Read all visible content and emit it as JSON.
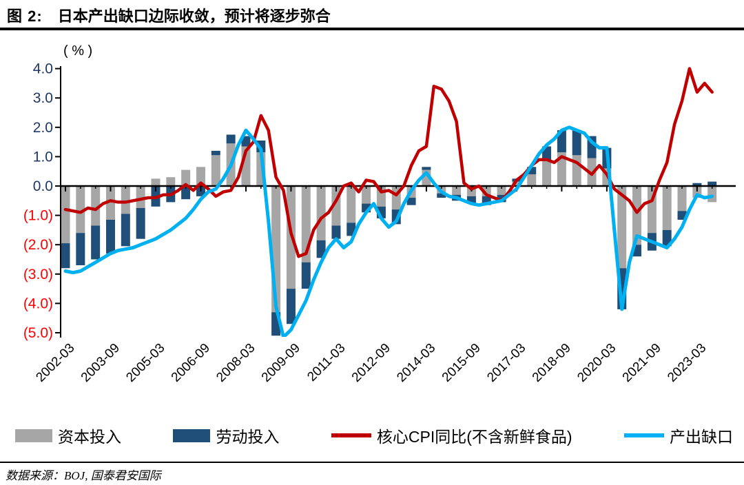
{
  "title": {
    "prefix": "图 2:",
    "text": "日本产出缺口边际收敛，预计将逐步弥合"
  },
  "source": {
    "label": "数据来源：BOJ, 国泰君安国际"
  },
  "axis": {
    "unit_label": "( % )",
    "y_ticks": [
      {
        "value": 4,
        "label": "4.0"
      },
      {
        "value": 3,
        "label": "3.0"
      },
      {
        "value": 2,
        "label": "2.0"
      },
      {
        "value": 1,
        "label": "1.0"
      },
      {
        "value": 0,
        "label": "0.0"
      },
      {
        "value": -1,
        "label": "(1.0)"
      },
      {
        "value": -2,
        "label": "(2.0)"
      },
      {
        "value": -3,
        "label": "(3.0)"
      },
      {
        "value": -4,
        "label": "(4.0)"
      },
      {
        "value": -5,
        "label": "(5.0)"
      }
    ],
    "x_tick_labels": [
      "2002-03",
      "2003-09",
      "2005-03",
      "2006-09",
      "2008-03",
      "2009-09",
      "2011-03",
      "2012-09",
      "2014-03",
      "2015-09",
      "2017-03",
      "2018-09",
      "2020-03",
      "2021-09",
      "2023-03"
    ]
  },
  "colors": {
    "capital": "#A6A6A6",
    "labor": "#1F4E79",
    "cpi": "#C00000",
    "gap": "#00B0F0",
    "axis": "#000000",
    "y_label_positive": "#1F3864",
    "y_label_negative": "#FF0000"
  },
  "legend": [
    {
      "label": "资本投入",
      "kind": "bar",
      "color": "#A6A6A6"
    },
    {
      "label": "劳动投入",
      "kind": "bar",
      "color": "#1F4E79"
    },
    {
      "label": "核心CPI同比(不含新鲜食品)",
      "kind": "line",
      "color": "#C00000"
    },
    {
      "label": "产出缺口",
      "kind": "line",
      "color": "#00B0F0"
    }
  ],
  "chart_data": {
    "type": "combo-bar-line",
    "title": "日本产出缺口边际收敛，预计将逐步弥合",
    "ylabel": "( % )",
    "ylim": [
      -5,
      4
    ],
    "grid": false,
    "legend_position": "bottom",
    "bar_dates": [
      "2002-03",
      "2002-09",
      "2003-03",
      "2003-09",
      "2004-03",
      "2004-09",
      "2005-03",
      "2005-09",
      "2006-03",
      "2006-09",
      "2007-03",
      "2007-09",
      "2008-03",
      "2008-09",
      "2009-03",
      "2009-09",
      "2010-03",
      "2010-09",
      "2011-03",
      "2011-09",
      "2012-03",
      "2012-09",
      "2013-03",
      "2013-09",
      "2014-03",
      "2014-09",
      "2015-03",
      "2015-09",
      "2016-03",
      "2016-09",
      "2017-03",
      "2017-09",
      "2018-03",
      "2018-09",
      "2019-03",
      "2019-09",
      "2020-03",
      "2020-09",
      "2021-03",
      "2021-09",
      "2022-03",
      "2022-09",
      "2023-03",
      "2023-09"
    ],
    "series": [
      {
        "name": "资本投入",
        "type": "bar",
        "stacked": true,
        "color": "#A6A6A6",
        "values": [
          -1.95,
          -1.6,
          -1.35,
          -1.15,
          -0.95,
          -0.75,
          0.25,
          0.3,
          0.55,
          0.65,
          1.05,
          1.45,
          1.35,
          1.15,
          -4.3,
          -3.5,
          -2.6,
          -1.85,
          -1.35,
          -1.25,
          -0.6,
          -0.7,
          -0.8,
          -0.4,
          0.55,
          -0.25,
          -0.3,
          -0.35,
          -0.35,
          -0.3,
          0.15,
          0.4,
          0.85,
          1.15,
          1.05,
          0.95,
          0.6,
          -2.8,
          -2.0,
          -1.6,
          -1.5,
          -0.85,
          -0.4,
          -0.55
        ]
      },
      {
        "name": "劳动投入",
        "type": "bar",
        "stacked": true,
        "color": "#1F4E79",
        "values": [
          -0.85,
          -1.1,
          -1.15,
          -1.15,
          -1.1,
          -1.05,
          -0.7,
          -0.55,
          -0.45,
          -0.35,
          0.15,
          0.3,
          0.35,
          0.4,
          -0.8,
          -1.2,
          -0.9,
          -0.6,
          -0.45,
          -0.45,
          -0.3,
          -0.4,
          -0.5,
          -0.25,
          0.1,
          -0.15,
          -0.2,
          -0.25,
          -0.3,
          -0.25,
          0.1,
          0.25,
          0.5,
          0.75,
          0.85,
          0.75,
          0.7,
          -1.4,
          -0.4,
          -0.6,
          -0.55,
          -0.3,
          0.1,
          0.15
        ]
      },
      {
        "name": "核心CPI同比(不含新鲜食品)",
        "type": "line",
        "color": "#C00000",
        "x_start": 2002.25,
        "x_step": 0.25,
        "values": [
          -0.8,
          -0.85,
          -0.9,
          -0.75,
          -0.8,
          -0.6,
          -0.5,
          -0.55,
          -0.55,
          -0.5,
          -0.45,
          -0.4,
          -0.4,
          -0.3,
          -0.3,
          -0.15,
          0.05,
          -0.15,
          0.1,
          -0.1,
          -0.35,
          -0.2,
          -0.15,
          0.3,
          1.2,
          1.5,
          2.4,
          1.9,
          0.3,
          -0.15,
          -1.6,
          -2.4,
          -2.3,
          -1.5,
          -1.1,
          -0.9,
          -0.5,
          0.0,
          0.1,
          -0.2,
          0.2,
          0.15,
          -0.2,
          -0.15,
          -0.3,
          0.0,
          0.7,
          1.2,
          1.35,
          3.4,
          3.3,
          2.9,
          2.2,
          0.1,
          -0.1,
          0.0,
          -0.3,
          -0.4,
          -0.5,
          -0.2,
          0.2,
          0.4,
          0.7,
          0.9,
          0.9,
          0.8,
          1.0,
          0.9,
          0.8,
          0.6,
          0.4,
          0.7,
          0.4,
          -0.1,
          -0.3,
          -0.5,
          -0.9,
          -0.6,
          -0.5,
          0.2,
          0.8,
          2.1,
          2.9,
          4.0,
          3.2,
          3.5,
          3.2
        ]
      },
      {
        "name": "产出缺口",
        "type": "line",
        "color": "#00B0F0",
        "x_start": 2002.25,
        "x_step": 0.25,
        "values": [
          -2.9,
          -2.95,
          -2.9,
          -2.75,
          -2.6,
          -2.45,
          -2.3,
          -2.2,
          -2.15,
          -2.1,
          -2.0,
          -1.9,
          -1.8,
          -1.65,
          -1.5,
          -1.3,
          -1.1,
          -0.8,
          -0.45,
          -0.2,
          -0.1,
          0.25,
          0.7,
          1.4,
          1.9,
          1.6,
          1.25,
          -1.2,
          -4.1,
          -5.15,
          -4.9,
          -4.4,
          -3.9,
          -3.2,
          -2.6,
          -2.1,
          -1.8,
          -2.1,
          -1.9,
          -1.3,
          -0.9,
          -0.6,
          -1.1,
          -1.4,
          -1.2,
          -0.6,
          -0.15,
          0.2,
          0.45,
          0.1,
          -0.2,
          -0.35,
          -0.4,
          -0.5,
          -0.6,
          -0.65,
          -0.6,
          -0.55,
          -0.5,
          -0.3,
          -0.1,
          0.3,
          0.7,
          1.1,
          1.4,
          1.6,
          1.9,
          2.0,
          1.9,
          1.8,
          1.5,
          1.3,
          1.3,
          -1.5,
          -4.2,
          -2.6,
          -1.7,
          -1.8,
          -1.9,
          -2.0,
          -2.1,
          -1.8,
          -1.4,
          -0.8,
          -0.3,
          -0.4,
          -0.35
        ]
      }
    ]
  }
}
